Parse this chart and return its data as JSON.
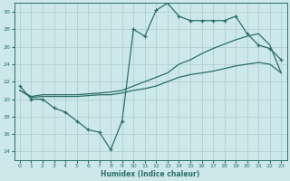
{
  "xlabel": "Humidex (Indice chaleur)",
  "background_color": "#cde8ea",
  "grid_color": "#b0d0d2",
  "line_color": "#2a6e6a",
  "xlim": [
    -0.5,
    23.5
  ],
  "ylim": [
    13,
    31
  ],
  "xticks": [
    0,
    1,
    2,
    3,
    4,
    5,
    6,
    7,
    8,
    9,
    10,
    11,
    12,
    13,
    14,
    15,
    16,
    17,
    18,
    19,
    20,
    21,
    22,
    23
  ],
  "yticks": [
    14,
    16,
    18,
    20,
    22,
    24,
    26,
    28,
    30
  ],
  "series1_x": [
    0,
    1,
    2,
    3,
    4,
    5,
    6,
    7,
    8,
    9,
    10,
    11,
    12,
    13,
    14,
    15,
    16,
    17,
    18,
    19,
    20,
    21,
    22,
    23
  ],
  "series1_y": [
    21.5,
    20.0,
    20.0,
    19.0,
    18.5,
    17.5,
    16.5,
    16.2,
    14.2,
    17.5,
    28.0,
    27.2,
    30.2,
    31.0,
    29.5,
    29.0,
    29.0,
    29.0,
    29.0,
    29.5,
    27.5,
    26.2,
    25.8,
    24.5
  ],
  "series1_markers": [
    true,
    true,
    true,
    true,
    true,
    true,
    true,
    true,
    true,
    true,
    true,
    true,
    true,
    true,
    true,
    true,
    true,
    true,
    true,
    true,
    true,
    true,
    true,
    true
  ],
  "series2_x": [
    0,
    1,
    2,
    3,
    4,
    5,
    6,
    7,
    8,
    9,
    10,
    11,
    12,
    13,
    14,
    15,
    16,
    17,
    18,
    19,
    20,
    21,
    22,
    23
  ],
  "series2_y": [
    21.0,
    20.3,
    20.5,
    20.5,
    20.5,
    20.5,
    20.6,
    20.7,
    20.8,
    21.0,
    21.5,
    22.0,
    22.5,
    23.0,
    24.0,
    24.5,
    25.2,
    25.8,
    26.3,
    26.8,
    27.2,
    27.5,
    26.2,
    23.0
  ],
  "series2_markers": [
    false,
    false,
    false,
    false,
    false,
    false,
    false,
    false,
    false,
    false,
    false,
    false,
    false,
    false,
    false,
    false,
    false,
    false,
    false,
    false,
    false,
    false,
    false,
    false
  ],
  "series3_x": [
    0,
    1,
    2,
    3,
    4,
    5,
    6,
    7,
    8,
    9,
    10,
    11,
    12,
    13,
    14,
    15,
    16,
    17,
    18,
    19,
    20,
    21,
    22,
    23
  ],
  "series3_y": [
    21.0,
    20.2,
    20.3,
    20.3,
    20.3,
    20.3,
    20.4,
    20.5,
    20.5,
    20.7,
    21.0,
    21.2,
    21.5,
    22.0,
    22.5,
    22.8,
    23.0,
    23.2,
    23.5,
    23.8,
    24.0,
    24.2,
    24.0,
    23.0
  ],
  "series3_markers": [
    false,
    false,
    false,
    false,
    false,
    false,
    false,
    false,
    false,
    false,
    false,
    false,
    false,
    false,
    false,
    false,
    false,
    false,
    false,
    false,
    false,
    false,
    false,
    false
  ]
}
